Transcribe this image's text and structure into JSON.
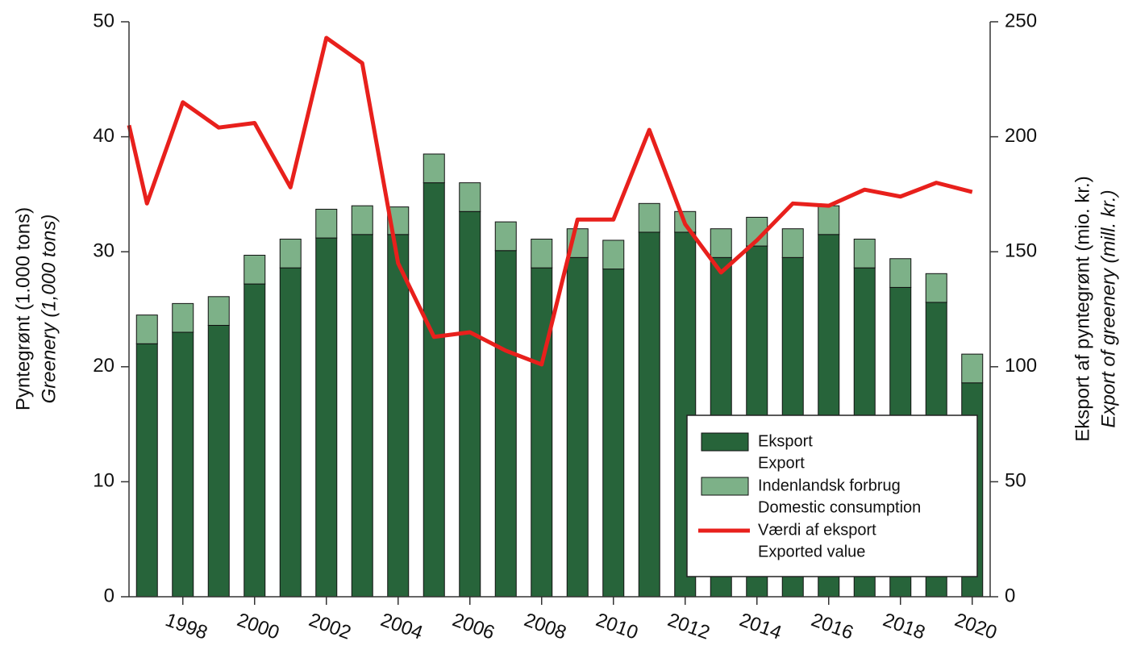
{
  "chart_data": {
    "type": "bar_line",
    "y_label": "Pyntegrønt (1.000 tons)",
    "y_label_en": "Greenery (1,000 tons)",
    "y2_label": "Eksport af pyntegrønt (mio. kr.)",
    "y2_label_en": "Export of greenery (mill. kr.)",
    "x": [
      1997,
      1998,
      1999,
      2000,
      2001,
      2002,
      2003,
      2004,
      2005,
      2006,
      2007,
      2008,
      2009,
      2010,
      2011,
      2012,
      2013,
      2014,
      2015,
      2016,
      2017,
      2018,
      2019,
      2020
    ],
    "xlim": [
      1996.5,
      2020.5
    ],
    "xticks": [
      1998,
      2000,
      2002,
      2004,
      2006,
      2008,
      2010,
      2012,
      2014,
      2016,
      2018,
      2020
    ],
    "ylim": [
      0,
      50
    ],
    "yticks": [
      0,
      10,
      20,
      30,
      40,
      50
    ],
    "y2lim": [
      0,
      250
    ],
    "y2ticks": [
      0,
      50,
      100,
      150,
      200,
      250
    ],
    "series": [
      {
        "name": "Eksport",
        "name_en": "Export",
        "type": "bar",
        "color": "#27643a",
        "values": [
          22,
          23,
          23.6,
          27.2,
          28.6,
          31.2,
          31.5,
          31.5,
          36,
          33.5,
          30.1,
          28.6,
          29.5,
          28.5,
          31.7,
          31.7,
          29.5,
          30.5,
          29.5,
          31.5,
          28.6,
          26.9,
          25.6,
          18.6
        ]
      },
      {
        "name": "Indenlandsk forbrug",
        "name_en": "Domestic consumption",
        "type": "bar",
        "color": "#7db188",
        "values": [
          2.5,
          2.5,
          2.5,
          2.5,
          2.5,
          2.5,
          2.5,
          2.4,
          2.5,
          2.5,
          2.5,
          2.5,
          2.5,
          2.5,
          2.5,
          1.8,
          2.5,
          2.5,
          2.5,
          2.5,
          2.5,
          2.5,
          2.5,
          2.5
        ]
      },
      {
        "name": "Værdi af eksport",
        "name_en": "Exported value",
        "type": "line",
        "axis": "y2",
        "color": "#e8201c",
        "x": [
          1996.5,
          1997,
          1998,
          1999,
          2000,
          2001,
          2002,
          2003,
          2004,
          2005,
          2006,
          2007,
          2008,
          2009,
          2010,
          2011,
          2012,
          2013,
          2014,
          2015,
          2016,
          2017,
          2018,
          2019,
          2020
        ],
        "values": [
          205,
          171,
          215,
          204,
          206,
          178,
          243,
          232,
          145,
          113,
          115,
          107,
          101,
          164,
          164,
          203,
          162,
          141,
          155,
          171,
          170,
          177,
          174,
          180,
          176
        ]
      }
    ]
  }
}
